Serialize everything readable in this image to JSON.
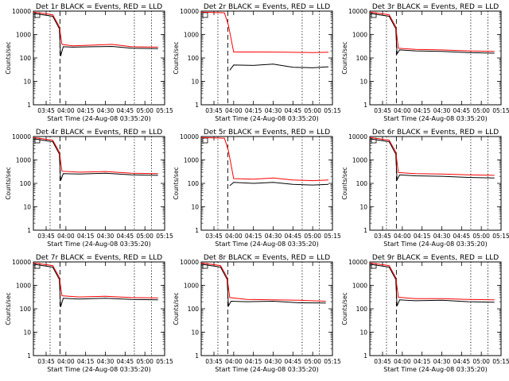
{
  "chart_data": {
    "type": "line",
    "y_scale": "log",
    "ylim": [
      1,
      10000
    ],
    "yticks": [
      "1",
      "10",
      "100",
      "1000",
      "10000"
    ],
    "xlim": [
      "03:35:20",
      "05:15:00"
    ],
    "xticks": [
      "03:45",
      "04:00",
      "04:15",
      "04:30",
      "04:45",
      "05:00",
      "05:15"
    ],
    "xlabel": "Start Time (24-Aug-08 03:35:20)",
    "ylabel": "Counts/sec",
    "colors": {
      "events": "#000000",
      "lld": "#ff0000"
    },
    "vlines": [
      {
        "time": "03:55:30",
        "style": "dashed"
      },
      {
        "time": "03:48:00",
        "style": "dotted"
      },
      {
        "time": "04:52:00",
        "style": "dotted"
      },
      {
        "time": "05:05:00",
        "style": "dotted"
      }
    ],
    "panels": [
      {
        "title": "Det 1r BLACK = Events, RED = LLD",
        "series": [
          {
            "name": "Events",
            "x": [
              "03:35:20",
              "03:50:00",
              "03:55:00",
              "03:56:00",
              "03:58:00",
              "04:05:00",
              "04:20:00",
              "04:35:00",
              "04:50:00",
              "05:10:00"
            ],
            "y": [
              8000,
              6000,
              1800,
              120,
              300,
              290,
              300,
              310,
              260,
              250
            ]
          },
          {
            "name": "LLD",
            "x": [
              "03:35:20",
              "03:50:00",
              "03:55:00",
              "03:57:00",
              "04:05:00",
              "04:20:00",
              "04:35:00",
              "04:50:00",
              "05:10:00"
            ],
            "y": [
              9000,
              7000,
              2200,
              380,
              330,
              350,
              380,
              300,
              290
            ]
          }
        ]
      },
      {
        "title": "Det 2r BLACK = Events, RED = LLD",
        "series": [
          {
            "name": "Events",
            "x": [
              "03:57:00",
              "04:00:00",
              "04:15:00",
              "04:30:00",
              "04:45:00",
              "05:00:00",
              "05:12:00"
            ],
            "y": [
              30,
              50,
              48,
              55,
              40,
              38,
              42
            ]
          },
          {
            "name": "LLD",
            "x": [
              "03:35:20",
              "03:53:00",
              "03:56:00",
              "04:00:00",
              "04:20:00",
              "04:40:00",
              "05:00:00",
              "05:12:00"
            ],
            "y": [
              9000,
              8500,
              2500,
              180,
              180,
              175,
              170,
              175
            ]
          }
        ]
      },
      {
        "title": "Det 3r BLACK = Events, RED = LLD",
        "series": [
          {
            "name": "Events",
            "x": [
              "03:35:20",
              "03:50:00",
              "03:55:00",
              "03:56:00",
              "03:58:00",
              "04:10:00",
              "04:30:00",
              "04:50:00",
              "05:10:00"
            ],
            "y": [
              8000,
              6000,
              1800,
              150,
              220,
              200,
              190,
              170,
              160
            ]
          },
          {
            "name": "LLD",
            "x": [
              "03:35:20",
              "03:50:00",
              "03:55:00",
              "03:57:00",
              "04:10:00",
              "04:30:00",
              "04:50:00",
              "05:10:00"
            ],
            "y": [
              9000,
              7000,
              2200,
              260,
              230,
              220,
              200,
              190
            ]
          }
        ]
      },
      {
        "title": "Det 4r BLACK = Events, RED = LLD",
        "series": [
          {
            "name": "Events",
            "x": [
              "03:35:20",
              "03:50:00",
              "03:55:00",
              "03:56:00",
              "03:58:00",
              "04:10:00",
              "04:30:00",
              "04:50:00",
              "05:10:00"
            ],
            "y": [
              8000,
              6000,
              1800,
              130,
              260,
              250,
              270,
              230,
              220
            ]
          },
          {
            "name": "LLD",
            "x": [
              "03:35:20",
              "03:50:00",
              "03:55:00",
              "03:57:00",
              "04:10:00",
              "04:30:00",
              "04:50:00",
              "05:10:00"
            ],
            "y": [
              9000,
              7000,
              2200,
              330,
              300,
              320,
              270,
              260
            ]
          }
        ]
      },
      {
        "title": "Det 5r BLACK = Events, RED = LLD",
        "series": [
          {
            "name": "Events",
            "x": [
              "03:57:00",
              "04:00:00",
              "04:15:00",
              "04:30:00",
              "04:45:00",
              "05:00:00",
              "05:12:00"
            ],
            "y": [
              80,
              110,
              100,
              110,
              90,
              85,
              90
            ]
          },
          {
            "name": "LLD",
            "x": [
              "03:35:20",
              "03:53:00",
              "03:56:00",
              "04:00:00",
              "04:15:00",
              "04:30:00",
              "04:45:00",
              "05:00:00",
              "05:12:00"
            ],
            "y": [
              9000,
              8500,
              2500,
              160,
              150,
              170,
              140,
              130,
              140
            ]
          }
        ]
      },
      {
        "title": "Det 6r BLACK = Events, RED = LLD",
        "series": [
          {
            "name": "Events",
            "x": [
              "03:35:20",
              "03:50:00",
              "03:55:00",
              "03:56:00",
              "03:58:00",
              "04:10:00",
              "04:30:00",
              "04:50:00",
              "05:10:00"
            ],
            "y": [
              8000,
              6000,
              1800,
              140,
              230,
              210,
              200,
              180,
              170
            ]
          },
          {
            "name": "LLD",
            "x": [
              "03:35:20",
              "03:50:00",
              "03:55:00",
              "03:57:00",
              "04:10:00",
              "04:30:00",
              "04:50:00",
              "05:10:00"
            ],
            "y": [
              9000,
              7000,
              2200,
              290,
              260,
              250,
              230,
              220
            ]
          }
        ]
      },
      {
        "title": "Det 7r BLACK = Events, RED = LLD",
        "series": [
          {
            "name": "Events",
            "x": [
              "03:35:20",
              "03:50:00",
              "03:55:00",
              "03:56:00",
              "03:58:00",
              "04:10:00",
              "04:30:00",
              "04:50:00",
              "05:10:00"
            ],
            "y": [
              8000,
              6000,
              1800,
              120,
              280,
              260,
              280,
              250,
              240
            ]
          },
          {
            "name": "LLD",
            "x": [
              "03:35:20",
              "03:50:00",
              "03:55:00",
              "03:57:00",
              "04:10:00",
              "04:30:00",
              "04:50:00",
              "05:10:00"
            ],
            "y": [
              9000,
              7000,
              2200,
              360,
              320,
              340,
              300,
              290
            ]
          }
        ]
      },
      {
        "title": "Det 8r BLACK = Events, RED = LLD",
        "series": [
          {
            "name": "Events",
            "x": [
              "03:35:20",
              "03:50:00",
              "03:55:00",
              "03:56:00",
              "03:58:00",
              "04:10:00",
              "04:30:00",
              "04:50:00",
              "05:10:00"
            ],
            "y": [
              8000,
              6000,
              1800,
              130,
              210,
              200,
              210,
              180,
              175
            ]
          },
          {
            "name": "LLD",
            "x": [
              "03:35:20",
              "03:50:00",
              "03:55:00",
              "03:57:00",
              "04:10:00",
              "04:30:00",
              "04:50:00",
              "05:10:00"
            ],
            "y": [
              9000,
              7000,
              2200,
              300,
              250,
              240,
              230,
              210
            ]
          }
        ]
      },
      {
        "title": "Det 9r BLACK = Events, RED = LLD",
        "series": [
          {
            "name": "Events",
            "x": [
              "03:35:20",
              "03:50:00",
              "03:55:00",
              "03:56:00",
              "03:58:00",
              "04:10:00",
              "04:30:00",
              "04:50:00",
              "05:10:00"
            ],
            "y": [
              8000,
              6000,
              1800,
              130,
              240,
              220,
              230,
              200,
              190
            ]
          },
          {
            "name": "LLD",
            "x": [
              "03:35:20",
              "03:50:00",
              "03:55:00",
              "03:57:00",
              "04:10:00",
              "04:30:00",
              "04:50:00",
              "05:10:00"
            ],
            "y": [
              9000,
              7000,
              2200,
              310,
              270,
              270,
              250,
              240
            ]
          }
        ]
      }
    ]
  }
}
